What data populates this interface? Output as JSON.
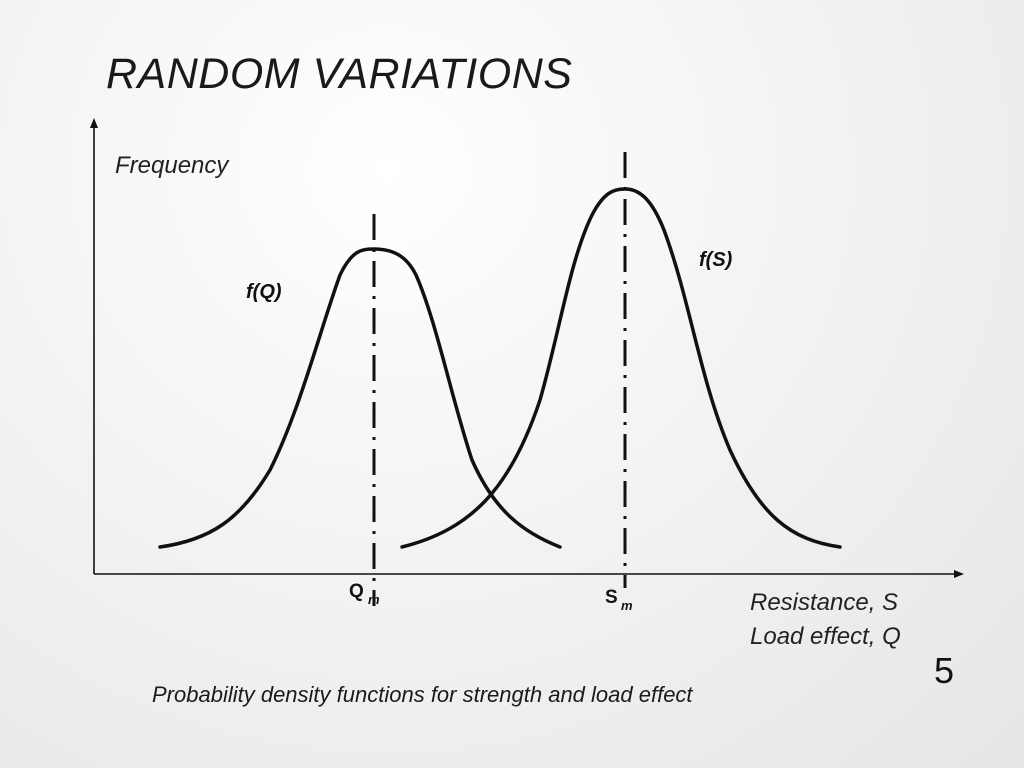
{
  "slide": {
    "title": "RANDOM VARIATIONS",
    "caption": "Probability density functions for strength and load effect",
    "page_number": "5"
  },
  "diagram": {
    "y_axis_label": "Frequency",
    "x_axis_label_line1": "Resistance, S",
    "x_axis_label_line2": "Load effect, Q",
    "curves": [
      {
        "label": "f(Q)",
        "mean_symbol": "Q",
        "mean_subscript": "m"
      },
      {
        "label": "f(S)",
        "mean_symbol": "S",
        "mean_subscript": "m"
      }
    ]
  }
}
